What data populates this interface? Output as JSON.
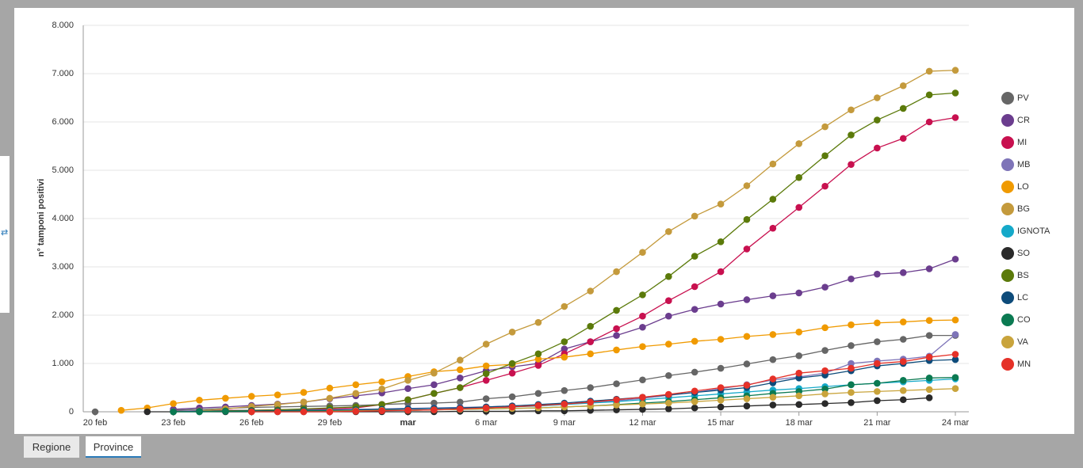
{
  "tabs": [
    "Regione",
    "Province"
  ],
  "chart_data": {
    "type": "line",
    "ylabel": "n° tamponi positivi",
    "categories": [
      "20 feb",
      null,
      null,
      "23 feb",
      null,
      null,
      "26 feb",
      null,
      null,
      "29 feb",
      null,
      null,
      "mar",
      null,
      null,
      "6 mar",
      null,
      null,
      "9 mar",
      null,
      null,
      "12 mar",
      null,
      null,
      "15 mar",
      null,
      null,
      "18 mar",
      null,
      null,
      "21 mar",
      null,
      null,
      "24 mar"
    ],
    "ylim": [
      0,
      8000
    ],
    "yticks": [
      0,
      {
        "value": 1000,
        "label": "1.000"
      },
      {
        "value": 2000,
        "label": "2.000"
      },
      {
        "value": 3000,
        "label": "3.000"
      },
      {
        "value": 4000,
        "label": "4.000"
      },
      {
        "value": 5000,
        "label": "5.000"
      },
      {
        "value": 6000,
        "label": "6.000"
      },
      {
        "value": 7000,
        "label": "7.000"
      },
      {
        "value": 8000,
        "label": "8.000"
      }
    ],
    "grid": true,
    "legend": "right",
    "series": [
      {
        "name": "PV",
        "color": "#666666",
        "values": [
          0,
          null,
          null,
          30,
          50,
          70,
          90,
          100,
          110,
          120,
          130,
          150,
          170,
          180,
          200,
          270,
          310,
          380,
          440,
          500,
          580,
          660,
          750,
          820,
          900,
          990,
          1080,
          1160,
          1270,
          1370,
          1450,
          1500,
          1580,
          1580
        ]
      },
      {
        "name": "CR",
        "color": "#6b3d8e",
        "values": [
          null,
          null,
          null,
          50,
          80,
          100,
          130,
          160,
          200,
          270,
          330,
          390,
          480,
          560,
          700,
          850,
          930,
          1000,
          1300,
          1450,
          1580,
          1750,
          1980,
          2120,
          2230,
          2320,
          2400,
          2460,
          2580,
          2750,
          2850,
          2880,
          2960,
          3160
        ]
      },
      {
        "name": "MI",
        "color": "#c8104f",
        "values": [
          null,
          null,
          null,
          10,
          20,
          30,
          30,
          40,
          50,
          60,
          80,
          150,
          250,
          380,
          500,
          650,
          800,
          960,
          1200,
          1450,
          1720,
          1980,
          2300,
          2590,
          2900,
          3370,
          3800,
          4230,
          4670,
          5120,
          5460,
          5660,
          6000,
          6090
        ]
      },
      {
        "name": "MB",
        "color": "#7e74b8",
        "values": [
          null,
          null,
          null,
          10,
          20,
          20,
          30,
          30,
          40,
          40,
          50,
          60,
          70,
          80,
          90,
          100,
          120,
          140,
          160,
          190,
          230,
          280,
          340,
          400,
          480,
          560,
          660,
          720,
          800,
          1000,
          1050,
          1090,
          1150,
          1600
        ]
      },
      {
        "name": "LO",
        "color": "#f09a00",
        "values": [
          null,
          30,
          80,
          170,
          240,
          280,
          320,
          350,
          400,
          490,
          560,
          620,
          730,
          830,
          870,
          950,
          980,
          1090,
          1130,
          1200,
          1280,
          1350,
          1400,
          1460,
          1500,
          1560,
          1600,
          1650,
          1740,
          1800,
          1840,
          1860,
          1890,
          1900
        ]
      },
      {
        "name": "BG",
        "color": "#c49a3c",
        "values": [
          null,
          null,
          null,
          null,
          20,
          60,
          110,
          150,
          200,
          280,
          380,
          470,
          650,
          800,
          1070,
          1400,
          1650,
          1850,
          2180,
          2500,
          2900,
          3300,
          3730,
          4050,
          4300,
          4680,
          5130,
          5550,
          5900,
          6250,
          6500,
          6750,
          7050,
          7070
        ]
      },
      {
        "name": "IGNOTA",
        "color": "#15a9c9",
        "values": [
          null,
          null,
          null,
          null,
          null,
          null,
          null,
          null,
          null,
          30,
          40,
          50,
          60,
          70,
          80,
          90,
          100,
          120,
          150,
          180,
          210,
          250,
          290,
          330,
          370,
          410,
          450,
          480,
          520,
          560,
          590,
          620,
          650,
          680
        ]
      },
      {
        "name": "SO",
        "color": "#2a2a2a",
        "values": [
          null,
          null,
          0,
          0,
          0,
          0,
          0,
          0,
          0,
          0,
          0,
          0,
          0,
          0,
          10,
          10,
          10,
          20,
          20,
          30,
          40,
          50,
          60,
          80,
          100,
          120,
          140,
          150,
          170,
          190,
          230,
          250,
          290,
          null
        ]
      },
      {
        "name": "BS",
        "color": "#5b7a0a",
        "values": [
          null,
          null,
          null,
          0,
          10,
          20,
          30,
          40,
          60,
          80,
          100,
          150,
          250,
          380,
          500,
          790,
          1000,
          1200,
          1450,
          1770,
          2100,
          2420,
          2800,
          3220,
          3520,
          3980,
          4400,
          4850,
          5300,
          5730,
          6040,
          6280,
          6560,
          6600
        ]
      },
      {
        "name": "LC",
        "color": "#0d4b7a",
        "values": [
          null,
          null,
          null,
          0,
          10,
          10,
          20,
          20,
          30,
          30,
          40,
          50,
          60,
          70,
          80,
          100,
          120,
          150,
          180,
          220,
          260,
          300,
          350,
          400,
          450,
          500,
          600,
          700,
          760,
          850,
          950,
          1000,
          1060,
          1080
        ]
      },
      {
        "name": "CO",
        "color": "#0b7a52",
        "values": [
          null,
          null,
          null,
          0,
          0,
          10,
          10,
          10,
          20,
          20,
          20,
          30,
          30,
          40,
          50,
          60,
          70,
          80,
          100,
          120,
          150,
          180,
          210,
          250,
          290,
          330,
          380,
          420,
          470,
          560,
          590,
          650,
          700,
          710
        ]
      },
      {
        "name": "VA",
        "color": "#c9a43c",
        "values": [
          null,
          null,
          null,
          null,
          null,
          null,
          null,
          null,
          null,
          10,
          20,
          30,
          30,
          40,
          50,
          60,
          70,
          80,
          100,
          120,
          140,
          160,
          180,
          210,
          240,
          270,
          300,
          330,
          370,
          400,
          420,
          440,
          460,
          480
        ]
      },
      {
        "name": "MN",
        "color": "#e53128",
        "values": [
          null,
          null,
          null,
          null,
          null,
          null,
          0,
          0,
          0,
          0,
          10,
          20,
          30,
          40,
          60,
          80,
          100,
          130,
          160,
          200,
          250,
          300,
          360,
          430,
          500,
          550,
          680,
          800,
          850,
          900,
          1000,
          1040,
          1130,
          1190
        ]
      }
    ]
  }
}
